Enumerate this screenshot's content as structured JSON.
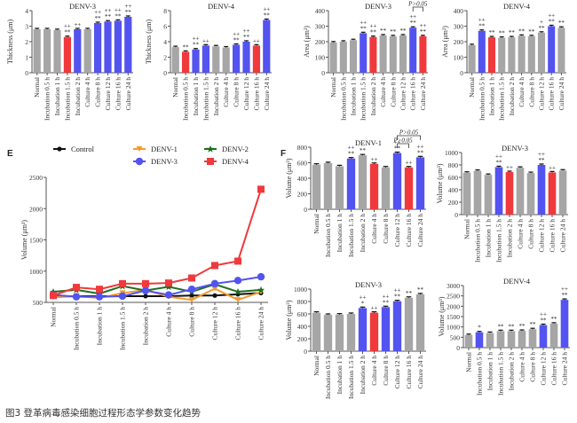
{
  "caption": "图3 登革病毒感染细胞过程形态学参数变化趋势",
  "panel_letters": {
    "e": "E",
    "f": "F"
  },
  "colors": {
    "gray": "#a6a6a6",
    "red": "#f0393c",
    "blue": "#5353f0",
    "black": "#111111",
    "orange": "#f39a2c",
    "green": "#1e6e1e"
  },
  "chart_data": [
    {
      "id": "thick-d3",
      "type": "bar",
      "title": "DENV-3",
      "ylabel": "Thickness (μm)",
      "ylim": [
        0,
        4
      ],
      "yticks": [
        0,
        1,
        2,
        3,
        4
      ],
      "categories": [
        "Normal",
        "Incubation 0.5 h",
        "Incubation 1 h",
        "Incubation 1.5 h",
        "Incubation 2 h",
        "Culture 4 h",
        "Culture 8 h",
        "Culture 12 h",
        "Culture 16 h",
        "Culture 24 h"
      ],
      "values": [
        2.8,
        2.8,
        2.75,
        2.3,
        2.8,
        2.8,
        3.2,
        3.3,
        3.35,
        3.6
      ],
      "colors": [
        "gray",
        "gray",
        "gray",
        "red",
        "blue",
        "gray",
        "blue",
        "blue",
        "blue",
        "blue"
      ],
      "annotations": [
        "",
        "",
        "",
        "++\n**",
        "++",
        "",
        "++\n**",
        "++\n**",
        "++\n**",
        "++\n**"
      ]
    },
    {
      "id": "thick-d4",
      "type": "bar",
      "title": "DENV-4",
      "ylabel": "Thickness (μm)",
      "ylim": [
        0,
        8
      ],
      "yticks": [
        0,
        2,
        4,
        6,
        8
      ],
      "categories": [
        "Normal",
        "Incubation 0.5 h",
        "Incubation 1 h",
        "Incubation 1.5 h",
        "Incubation 2 h",
        "Culture 4 h",
        "Culture 8 h",
        "Culture 12 h",
        "Culture 16 h",
        "Culture 24 h"
      ],
      "values": [
        3.3,
        2.7,
        3.0,
        3.5,
        3.4,
        3.25,
        3.6,
        4.0,
        3.5,
        6.8
      ],
      "colors": [
        "gray",
        "red",
        "blue",
        "blue",
        "gray",
        "gray",
        "blue",
        "blue",
        "red",
        "blue"
      ],
      "annotations": [
        "",
        "**",
        "++\n**",
        "++",
        "",
        "",
        "++\n**",
        "++\n**",
        "++",
        "++\n**"
      ]
    },
    {
      "id": "area-d3",
      "type": "bar",
      "title": "DENV-3",
      "ylabel": "Area (μm²)",
      "ylim": [
        0,
        400
      ],
      "yticks": [
        0,
        100,
        200,
        300,
        400
      ],
      "categories": [
        "Normal",
        "Incubation 0.5 h",
        "Incubation 1 h",
        "Incubation 1.5 h",
        "Incubation 2 h",
        "Culture 4 h",
        "Culture 8 h",
        "Culture 12 h",
        "Culture 16 h",
        "Culture 24 h"
      ],
      "values": [
        195,
        200,
        210,
        255,
        230,
        240,
        235,
        240,
        290,
        235
      ],
      "colors": [
        "gray",
        "gray",
        "gray",
        "blue",
        "red",
        "gray",
        "gray",
        "gray",
        "blue",
        "red"
      ],
      "annotations": [
        "",
        "",
        "",
        "++\n**",
        "++\n**",
        "**",
        "**",
        "**",
        "++\n**",
        "++\n**"
      ],
      "brackets": [
        {
          "from": 8,
          "to": 9,
          "label": "P>0.05"
        }
      ]
    },
    {
      "id": "area-d4",
      "type": "bar",
      "title": "DENV-4",
      "ylabel": "Area (μm²)",
      "ylim": [
        0,
        400
      ],
      "yticks": [
        0,
        100,
        200,
        300,
        400
      ],
      "categories": [
        "Normal",
        "Incubation 0.5 h",
        "Incubation 1 h",
        "Incubation 1.5 h",
        "Incubation 2 h",
        "Culture 4 h",
        "Culture 8 h",
        "Culture 12 h",
        "Culture 16 h",
        "Culture 24 h"
      ],
      "values": [
        178,
        270,
        228,
        225,
        228,
        238,
        235,
        258,
        300,
        290
      ],
      "colors": [
        "gray",
        "blue",
        "red",
        "gray",
        "gray",
        "gray",
        "gray",
        "gray",
        "blue",
        "gray"
      ],
      "annotations": [
        "",
        "++\n**",
        "**",
        "**",
        "**",
        "**",
        "**",
        "+\n**",
        "++\n**",
        "**"
      ]
    },
    {
      "id": "vol-line",
      "type": "line",
      "title": "",
      "ylabel": "Volume (μm³)",
      "ylim": [
        500,
        2500
      ],
      "yticks": [
        500,
        1000,
        1500,
        2000,
        2500
      ],
      "categories": [
        "Normal",
        "Incubation 0.5 h",
        "Incubation 1 h",
        "Incubation 1.5 h",
        "Incubation 2 h",
        "Culture 4 h",
        "Culture 8 h",
        "Culture 12 h",
        "Culture 16 h",
        "Culture 24 h"
      ],
      "legend": "top",
      "series": [
        {
          "name": "Control",
          "color": "black",
          "marker": "dot",
          "values": [
            600,
            600,
            600,
            600,
            600,
            600,
            610,
            610,
            630,
            650
          ]
        },
        {
          "name": "DENV-1",
          "color": "orange",
          "marker": "dash",
          "values": [
            580,
            600,
            570,
            650,
            700,
            590,
            540,
            720,
            540,
            670
          ]
        },
        {
          "name": "DENV-2",
          "color": "green",
          "marker": "star",
          "values": [
            670,
            700,
            640,
            760,
            690,
            750,
            670,
            790,
            670,
            700
          ]
        },
        {
          "name": "DENV-3",
          "color": "blue",
          "marker": "circle",
          "values": [
            620,
            590,
            590,
            600,
            690,
            620,
            710,
            800,
            850,
            910
          ]
        },
        {
          "name": "DENV-4",
          "color": "red",
          "marker": "square",
          "values": [
            610,
            740,
            710,
            800,
            800,
            810,
            890,
            1090,
            1160,
            2310
          ]
        }
      ]
    },
    {
      "id": "vol-d1",
      "type": "bar",
      "title": "DENV-1",
      "ylabel": "Volume (μm³)",
      "ylim": [
        0,
        800
      ],
      "yticks": [
        0,
        200,
        400,
        600,
        800
      ],
      "categories": [
        "Normal",
        "Incubation 0.5 h",
        "Incubation 1 h",
        "Incubation 1.5 h",
        "Incubation 2 h",
        "Culture 4 h",
        "Culture 8 h",
        "Culture 12 h",
        "Culture 16 h",
        "Culture 24 h"
      ],
      "values": [
        575,
        595,
        555,
        655,
        695,
        585,
        540,
        725,
        540,
        670
      ],
      "colors": [
        "gray",
        "gray",
        "gray",
        "blue",
        "gray",
        "red",
        "gray",
        "blue",
        "red",
        "blue"
      ],
      "annotations": [
        "",
        "",
        "",
        "++\n**",
        "**",
        "++",
        "",
        "++\n**",
        "++",
        "++\n**"
      ],
      "brackets": [
        {
          "from": 7,
          "to": 8,
          "label": "P>0.05"
        },
        {
          "from": 7,
          "to": 9,
          "label": "P>0.05"
        }
      ]
    },
    {
      "id": "vol-d3top",
      "type": "bar",
      "title": "DENV-3",
      "ylabel": "Volume (μm³)",
      "ylim": [
        0,
        1000
      ],
      "yticks": [
        0,
        200,
        400,
        600,
        800,
        1000
      ],
      "categories": [
        "Normal",
        "Incubation 0.5 h",
        "Incubation 1 h",
        "Incubation 1.5 h",
        "Incubation 2 h",
        "Culture 4 h",
        "Culture 8 h",
        "Culture 12 h",
        "Culture 16 h",
        "Culture 24 h"
      ],
      "values": [
        675,
        705,
        640,
        765,
        685,
        755,
        670,
        800,
        680,
        710
      ],
      "colors": [
        "gray",
        "gray",
        "gray",
        "blue",
        "red",
        "gray",
        "gray",
        "blue",
        "red",
        "gray"
      ],
      "annotations": [
        "",
        "",
        "",
        "++\n**",
        "++",
        "",
        "",
        "++\n**",
        "++",
        ""
      ]
    },
    {
      "id": "vol-d3bot",
      "type": "bar",
      "title": "DENV-3",
      "ylabel": "Volume (μm³)",
      "ylim": [
        0,
        1000
      ],
      "yticks": [
        0,
        200,
        400,
        600,
        800,
        1000
      ],
      "categories": [
        "Normal",
        "Incubation 0.5 h",
        "Incubation 1 h",
        "Incubation 1.5 h",
        "Incubation 2 h",
        "Culture 4 h",
        "Culture 8 h",
        "Culture 12 h",
        "Culture 16 h",
        "Culture 24 h"
      ],
      "values": [
        620,
        585,
        590,
        600,
        695,
        620,
        710,
        805,
        860,
        915
      ],
      "colors": [
        "gray",
        "gray",
        "gray",
        "gray",
        "blue",
        "red",
        "blue",
        "blue",
        "gray",
        "gray"
      ],
      "annotations": [
        "",
        "",
        "",
        "",
        "++\n*",
        "++",
        "++\n**",
        "++\n**",
        "**",
        "**"
      ]
    },
    {
      "id": "vol-d4",
      "type": "bar",
      "title": "DENV-4",
      "ylabel": "Volume (μm³)",
      "ylim": [
        0,
        3000
      ],
      "yticks": [
        0,
        500,
        1000,
        1500,
        2000,
        2500,
        3000
      ],
      "categories": [
        "Normal",
        "Incubation 0.5 h",
        "Incubation 1 h",
        "Incubation 1.5 h",
        "Incubation 2 h",
        "Culture 4 h",
        "Culture 8 h",
        "Culture 12 h",
        "Culture 16 h",
        "Culture 24 h"
      ],
      "values": [
        610,
        740,
        710,
        800,
        800,
        810,
        890,
        1090,
        1160,
        2310
      ],
      "colors": [
        "gray",
        "blue",
        "gray",
        "gray",
        "gray",
        "gray",
        "gray",
        "blue",
        "gray",
        "blue"
      ],
      "annotations": [
        "",
        "*",
        "",
        "**",
        "**",
        "**",
        "**",
        "++\n**",
        "**",
        "++\n**"
      ]
    }
  ]
}
